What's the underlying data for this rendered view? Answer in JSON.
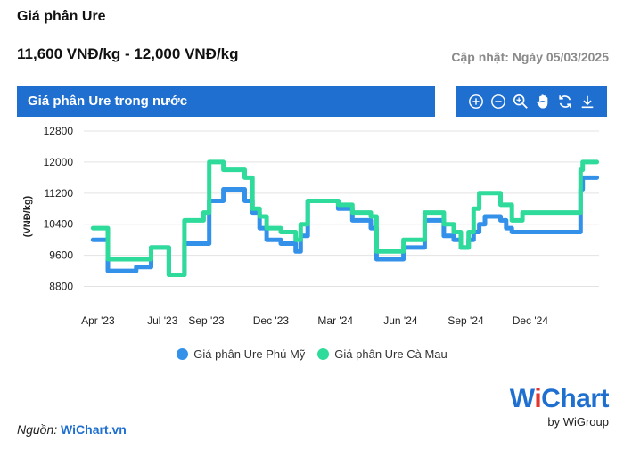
{
  "header": {
    "title": "Giá phân Ure",
    "price_range": "11,600 VNĐ/kg - 12,000 VNĐ/kg",
    "updated": "Cập nhật: Ngày 05/03/2025"
  },
  "chart_header": {
    "title": "Giá phân Ure trong nước"
  },
  "toolbar": {
    "icons": [
      "zoom-in-icon",
      "zoom-out-icon",
      "magnifier-icon",
      "pan-hand-icon",
      "reset-icon",
      "download-icon"
    ]
  },
  "colors": {
    "accent": "#1f6fd1",
    "phu_my": "#3391ea",
    "ca_mau": "#2edb9a",
    "grid": "#e3e3e3",
    "brand_red": "#e3342f"
  },
  "chart_data": {
    "type": "line",
    "title": "Giá phân Ure trong nước",
    "ylabel": "(VNĐ/kg)",
    "xlabel": "",
    "ylim": [
      8400,
      12800
    ],
    "yticks": [
      8800,
      9600,
      10400,
      11200,
      12000,
      12800
    ],
    "xticks": [
      "Apr '23",
      "Jul '23",
      "Sep '23",
      "Dec '23",
      "Mar '24",
      "Jun '24",
      "Sep '24",
      "Dec '24"
    ],
    "grid": true,
    "legend_position": "bottom",
    "step": true,
    "series": [
      {
        "name": "Giá phân Ure Phú Mỹ",
        "color": "#3391ea",
        "points": [
          [
            "2023-03-25",
            10000
          ],
          [
            "2023-04-15",
            9200
          ],
          [
            "2023-05-10",
            9200
          ],
          [
            "2023-05-25",
            9300
          ],
          [
            "2023-06-15",
            9800
          ],
          [
            "2023-07-10",
            9100
          ],
          [
            "2023-08-01",
            9900
          ],
          [
            "2023-08-15",
            9900
          ],
          [
            "2023-08-28",
            9900
          ],
          [
            "2023-09-05",
            11000
          ],
          [
            "2023-09-25",
            11300
          ],
          [
            "2023-10-15",
            11300
          ],
          [
            "2023-10-25",
            11000
          ],
          [
            "2023-11-05",
            10700
          ],
          [
            "2023-11-15",
            10300
          ],
          [
            "2023-11-25",
            10000
          ],
          [
            "2023-12-15",
            9900
          ],
          [
            "2024-01-05",
            9700
          ],
          [
            "2024-01-12",
            10100
          ],
          [
            "2024-01-22",
            11000
          ],
          [
            "2024-02-15",
            11000
          ],
          [
            "2024-03-05",
            10800
          ],
          [
            "2024-03-25",
            10500
          ],
          [
            "2024-04-20",
            10300
          ],
          [
            "2024-04-28",
            9500
          ],
          [
            "2024-05-20",
            9500
          ],
          [
            "2024-06-05",
            9800
          ],
          [
            "2024-06-15",
            9800
          ],
          [
            "2024-06-25",
            9800
          ],
          [
            "2024-07-05",
            10500
          ],
          [
            "2024-07-25",
            10500
          ],
          [
            "2024-08-01",
            10100
          ],
          [
            "2024-08-15",
            10000
          ],
          [
            "2024-08-25",
            9800
          ],
          [
            "2024-09-05",
            10000
          ],
          [
            "2024-09-12",
            10200
          ],
          [
            "2024-09-20",
            10400
          ],
          [
            "2024-09-28",
            10600
          ],
          [
            "2024-10-20",
            10500
          ],
          [
            "2024-10-28",
            10300
          ],
          [
            "2024-11-05",
            10200
          ],
          [
            "2024-11-20",
            10200
          ],
          [
            "2024-12-10",
            10200
          ],
          [
            "2025-01-10",
            10200
          ],
          [
            "2025-02-06",
            10200
          ],
          [
            "2025-02-10",
            11300
          ],
          [
            "2025-02-13",
            11600
          ],
          [
            "2025-03-05",
            11600
          ]
        ]
      },
      {
        "name": "Giá phân Ure Cà Mau",
        "color": "#2edb9a",
        "points": [
          [
            "2023-03-25",
            10300
          ],
          [
            "2023-04-15",
            9500
          ],
          [
            "2023-05-10",
            9500
          ],
          [
            "2023-05-25",
            9500
          ],
          [
            "2023-06-15",
            9800
          ],
          [
            "2023-07-10",
            9100
          ],
          [
            "2023-08-01",
            10500
          ],
          [
            "2023-08-15",
            10500
          ],
          [
            "2023-08-28",
            10700
          ],
          [
            "2023-09-05",
            12000
          ],
          [
            "2023-09-25",
            11800
          ],
          [
            "2023-10-15",
            11800
          ],
          [
            "2023-10-25",
            11600
          ],
          [
            "2023-11-05",
            10800
          ],
          [
            "2023-11-15",
            10600
          ],
          [
            "2023-11-25",
            10300
          ],
          [
            "2023-12-15",
            10200
          ],
          [
            "2024-01-05",
            10000
          ],
          [
            "2024-01-12",
            10400
          ],
          [
            "2024-01-22",
            11000
          ],
          [
            "2024-02-15",
            11000
          ],
          [
            "2024-03-05",
            10900
          ],
          [
            "2024-03-25",
            10700
          ],
          [
            "2024-04-20",
            10600
          ],
          [
            "2024-04-28",
            9700
          ],
          [
            "2024-05-20",
            9700
          ],
          [
            "2024-06-05",
            10000
          ],
          [
            "2024-06-15",
            10000
          ],
          [
            "2024-06-25",
            10000
          ],
          [
            "2024-07-05",
            10700
          ],
          [
            "2024-07-25",
            10700
          ],
          [
            "2024-08-01",
            10400
          ],
          [
            "2024-08-15",
            10200
          ],
          [
            "2024-08-25",
            9800
          ],
          [
            "2024-09-05",
            10200
          ],
          [
            "2024-09-12",
            10800
          ],
          [
            "2024-09-20",
            11200
          ],
          [
            "2024-09-28",
            11200
          ],
          [
            "2024-10-20",
            10900
          ],
          [
            "2024-10-28",
            10900
          ],
          [
            "2024-11-05",
            10500
          ],
          [
            "2024-11-20",
            10700
          ],
          [
            "2024-12-10",
            10700
          ],
          [
            "2025-01-10",
            10700
          ],
          [
            "2025-02-06",
            10700
          ],
          [
            "2025-02-10",
            11800
          ],
          [
            "2025-02-13",
            12000
          ],
          [
            "2025-03-05",
            12000
          ]
        ]
      }
    ]
  },
  "legend": [
    {
      "label": "Giá phân Ure Phú Mỹ",
      "color": "#3391ea"
    },
    {
      "label": "Giá phân Ure Cà Mau",
      "color": "#2edb9a"
    }
  ],
  "footer": {
    "source_label": "Nguồn:",
    "source_link": "WiChart.vn",
    "brand_w": "W",
    "brand_i": "i",
    "brand_chart": "Chart",
    "brand_by": "by WiGroup"
  }
}
